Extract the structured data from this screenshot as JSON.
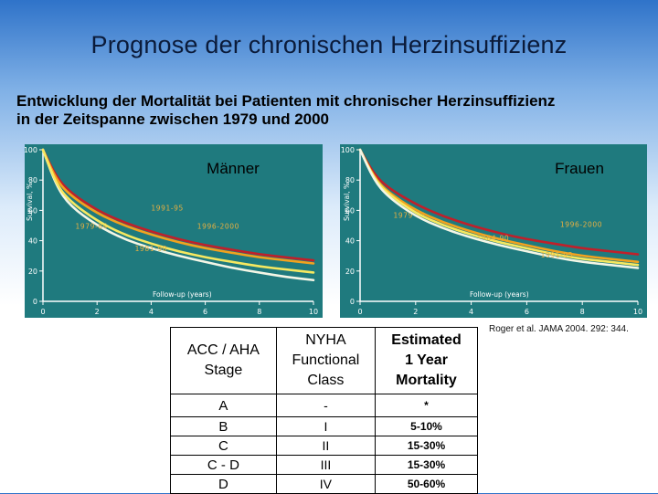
{
  "slide": {
    "title": "Prognose der chronischen Herzinsuffizienz",
    "subtitle_lines": [
      "Entwicklung der Mortalität bei Patienten mit chronischer Herzinsuffizienz",
      "in der Zeitspanne zwischen 1979 und 2000"
    ],
    "citation": "Roger et al. JAMA 2004. 292: 344."
  },
  "colors": {
    "chart_background": "#1f7a7e",
    "axis": "#ffffff",
    "red_series": "#c0202a",
    "orange_series": "#f2a21e",
    "yellow_series": "#f6e860",
    "white_series": "#f3f6e6",
    "series_label": "#e8b040"
  },
  "chart_data": [
    {
      "type": "line",
      "title": "Männer",
      "xlabel": "Follow-up (years)",
      "ylabel": "Survival, %",
      "xlim": [
        0,
        10
      ],
      "ylim": [
        0,
        100
      ],
      "x_ticks": [
        "0",
        "2",
        "4",
        "6",
        "8",
        "10"
      ],
      "y_ticks": [
        "0",
        "20",
        "40",
        "60",
        "80",
        "100"
      ],
      "grid": false,
      "series": [
        {
          "name": "1991-95",
          "color_key": "red_series",
          "x": [
            0,
            0.5,
            1,
            2,
            3,
            4,
            5,
            6,
            7,
            8,
            9,
            10
          ],
          "y": [
            100,
            82,
            72,
            60,
            52,
            46,
            41,
            37,
            34,
            31,
            29,
            27
          ]
        },
        {
          "name": "1996-2000",
          "color_key": "orange_series",
          "x": [
            0,
            0.5,
            1,
            2,
            3,
            4,
            5,
            6,
            7,
            8,
            9,
            10
          ],
          "y": [
            100,
            80,
            70,
            58,
            50,
            44,
            39,
            35,
            32,
            29,
            27,
            25
          ]
        },
        {
          "name": "1979-84",
          "color_key": "white_series",
          "x": [
            0,
            0.5,
            1,
            2,
            3,
            4,
            5,
            6,
            7,
            8,
            9,
            10
          ],
          "y": [
            100,
            76,
            63,
            50,
            41,
            35,
            30,
            26,
            22,
            19,
            16,
            14
          ]
        },
        {
          "name": "1981-90",
          "color_key": "yellow_series",
          "x": [
            0,
            0.5,
            1,
            2,
            3,
            4,
            5,
            6,
            7,
            8,
            9,
            10
          ],
          "y": [
            100,
            77,
            66,
            53,
            44,
            38,
            33,
            29,
            26,
            23,
            21,
            19
          ]
        }
      ]
    },
    {
      "type": "line",
      "title": "Frauen",
      "xlabel": "Follow-up (years)",
      "ylabel": "Survival, %",
      "xlim": [
        0,
        10
      ],
      "ylim": [
        0,
        100
      ],
      "x_ticks": [
        "0",
        "2",
        "4",
        "6",
        "8",
        "10"
      ],
      "y_ticks": [
        "0",
        "20",
        "40",
        "60",
        "80",
        "100"
      ],
      "grid": false,
      "series": [
        {
          "name": "1979 84",
          "color_key": "red_series",
          "x": [
            0,
            0.5,
            1,
            2,
            3,
            4,
            5,
            6,
            7,
            8,
            9,
            10
          ],
          "y": [
            100,
            84,
            75,
            64,
            56,
            50,
            45,
            41,
            38,
            35,
            33,
            31
          ]
        },
        {
          "name": "1996-2000",
          "color_key": "orange_series",
          "x": [
            0,
            0.5,
            1,
            2,
            3,
            4,
            5,
            6,
            7,
            8,
            9,
            10
          ],
          "y": [
            100,
            82,
            72,
            60,
            52,
            46,
            41,
            37,
            33,
            30,
            28,
            26
          ]
        },
        {
          "name": "1984-90",
          "color_key": "yellow_series",
          "x": [
            0,
            0.5,
            1,
            2,
            3,
            4,
            5,
            6,
            7,
            8,
            9,
            10
          ],
          "y": [
            100,
            81,
            71,
            58,
            50,
            44,
            39,
            35,
            31,
            28,
            26,
            24
          ]
        },
        {
          "name": "1991-95",
          "color_key": "white_series",
          "x": [
            0,
            0.5,
            1,
            2,
            3,
            4,
            5,
            6,
            7,
            8,
            9,
            10
          ],
          "y": [
            100,
            80,
            69,
            56,
            48,
            42,
            37,
            33,
            29,
            26,
            24,
            22
          ]
        }
      ]
    }
  ],
  "table": {
    "headers": [
      {
        "lines": [
          "ACC / AHA",
          "Stage"
        ],
        "bold": false
      },
      {
        "lines": [
          "NYHA",
          "Functional",
          "Class"
        ],
        "bold": false
      },
      {
        "lines": [
          "Estimated",
          "1 Year",
          "Mortality"
        ],
        "bold": true
      }
    ],
    "rows": [
      [
        "A",
        "-",
        "*"
      ],
      [
        "B",
        "I",
        "5-10%"
      ],
      [
        "C",
        "II",
        "15-30%"
      ],
      [
        "C - D",
        "III",
        "15-30%"
      ],
      [
        "D",
        "IV",
        "50-60%"
      ]
    ]
  }
}
